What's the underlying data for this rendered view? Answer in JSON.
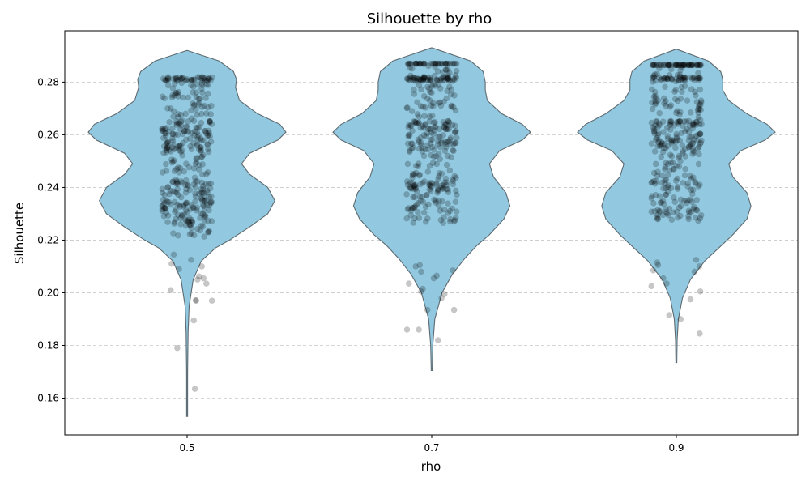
{
  "chart_data": {
    "type": "violin",
    "title": "Silhouette by rho",
    "xlabel": "rho",
    "ylabel": "Silhouette",
    "categories": [
      "0.5",
      "0.7",
      "0.9"
    ],
    "ylim": [
      0.146,
      0.2995
    ],
    "yticks": [
      "0.16",
      "0.18",
      "0.20",
      "0.22",
      "0.24",
      "0.26",
      "0.28"
    ],
    "grid": "y, dashed",
    "colors": {
      "violin_fill": "#92c9e0",
      "violin_edge": "#5e6a70",
      "points": "#000000"
    },
    "series": [
      {
        "category": "0.5",
        "min": 0.153,
        "max": 0.292,
        "density": [
          [
            0.153,
            0.2
          ],
          [
            0.17,
            0.4
          ],
          [
            0.185,
            1.0
          ],
          [
            0.195,
            2.0
          ],
          [
            0.205,
            6
          ],
          [
            0.212,
            14
          ],
          [
            0.217,
            28
          ],
          [
            0.22,
            42
          ],
          [
            0.225,
            62
          ],
          [
            0.23,
            80
          ],
          [
            0.235,
            87
          ],
          [
            0.24,
            80
          ],
          [
            0.245,
            62
          ],
          [
            0.249,
            54
          ],
          [
            0.253,
            62
          ],
          [
            0.258,
            90
          ],
          [
            0.261,
            98
          ],
          [
            0.264,
            92
          ],
          [
            0.268,
            70
          ],
          [
            0.273,
            52
          ],
          [
            0.278,
            48
          ],
          [
            0.281,
            49
          ],
          [
            0.284,
            46
          ],
          [
            0.288,
            32
          ],
          [
            0.292,
            0
          ]
        ],
        "points": [
          0.1635,
          0.179,
          0.1895,
          0.197,
          0.197,
          0.1972,
          0.201,
          0.2035,
          0.205,
          0.2055,
          0.2062,
          0.209,
          0.21,
          0.211,
          0.2125,
          0.2145,
          0.275,
          0.2775,
          0.274,
          0.271,
          0.27,
          0.268
        ]
      },
      {
        "category": "0.7",
        "min": 0.1705,
        "max": 0.293,
        "density": [
          [
            0.1705,
            0.2
          ],
          [
            0.18,
            1.0
          ],
          [
            0.19,
            3
          ],
          [
            0.2,
            10
          ],
          [
            0.207,
            20
          ],
          [
            0.213,
            32
          ],
          [
            0.218,
            44
          ],
          [
            0.222,
            56
          ],
          [
            0.228,
            70
          ],
          [
            0.233,
            76
          ],
          [
            0.238,
            72
          ],
          [
            0.244,
            60
          ],
          [
            0.249,
            56
          ],
          [
            0.254,
            66
          ],
          [
            0.258,
            88
          ],
          [
            0.261,
            96
          ],
          [
            0.264,
            88
          ],
          [
            0.268,
            68
          ],
          [
            0.273,
            54
          ],
          [
            0.277,
            52
          ],
          [
            0.28,
            52
          ],
          [
            0.284,
            50
          ],
          [
            0.288,
            38
          ],
          [
            0.293,
            0
          ]
        ],
        "points": [
          0.182,
          0.186,
          0.186,
          0.1935,
          0.1935,
          0.198,
          0.1995,
          0.2005,
          0.2015,
          0.2035,
          0.2055,
          0.2065,
          0.208,
          0.2085,
          0.21,
          0.2105,
          0.276,
          0.273,
          0.271,
          0.269
        ]
      },
      {
        "category": "0.9",
        "min": 0.1735,
        "max": 0.2925,
        "density": [
          [
            0.1735,
            0.2
          ],
          [
            0.182,
            0.8
          ],
          [
            0.19,
            2
          ],
          [
            0.198,
            6
          ],
          [
            0.205,
            14
          ],
          [
            0.212,
            28
          ],
          [
            0.217,
            42
          ],
          [
            0.222,
            56
          ],
          [
            0.228,
            70
          ],
          [
            0.233,
            74
          ],
          [
            0.238,
            70
          ],
          [
            0.244,
            56
          ],
          [
            0.249,
            52
          ],
          [
            0.254,
            64
          ],
          [
            0.258,
            88
          ],
          [
            0.261,
            98
          ],
          [
            0.264,
            90
          ],
          [
            0.268,
            70
          ],
          [
            0.273,
            52
          ],
          [
            0.277,
            46
          ],
          [
            0.281,
            46
          ],
          [
            0.284,
            44
          ],
          [
            0.288,
            32
          ],
          [
            0.2925,
            0
          ]
        ],
        "points": [
          0.1845,
          0.19,
          0.1915,
          0.1975,
          0.2005,
          0.2025,
          0.2035,
          0.2055,
          0.208,
          0.2085,
          0.21,
          0.2105,
          0.2115,
          0.2125,
          0.274,
          0.273,
          0.2715,
          0.2695
        ]
      }
    ]
  }
}
